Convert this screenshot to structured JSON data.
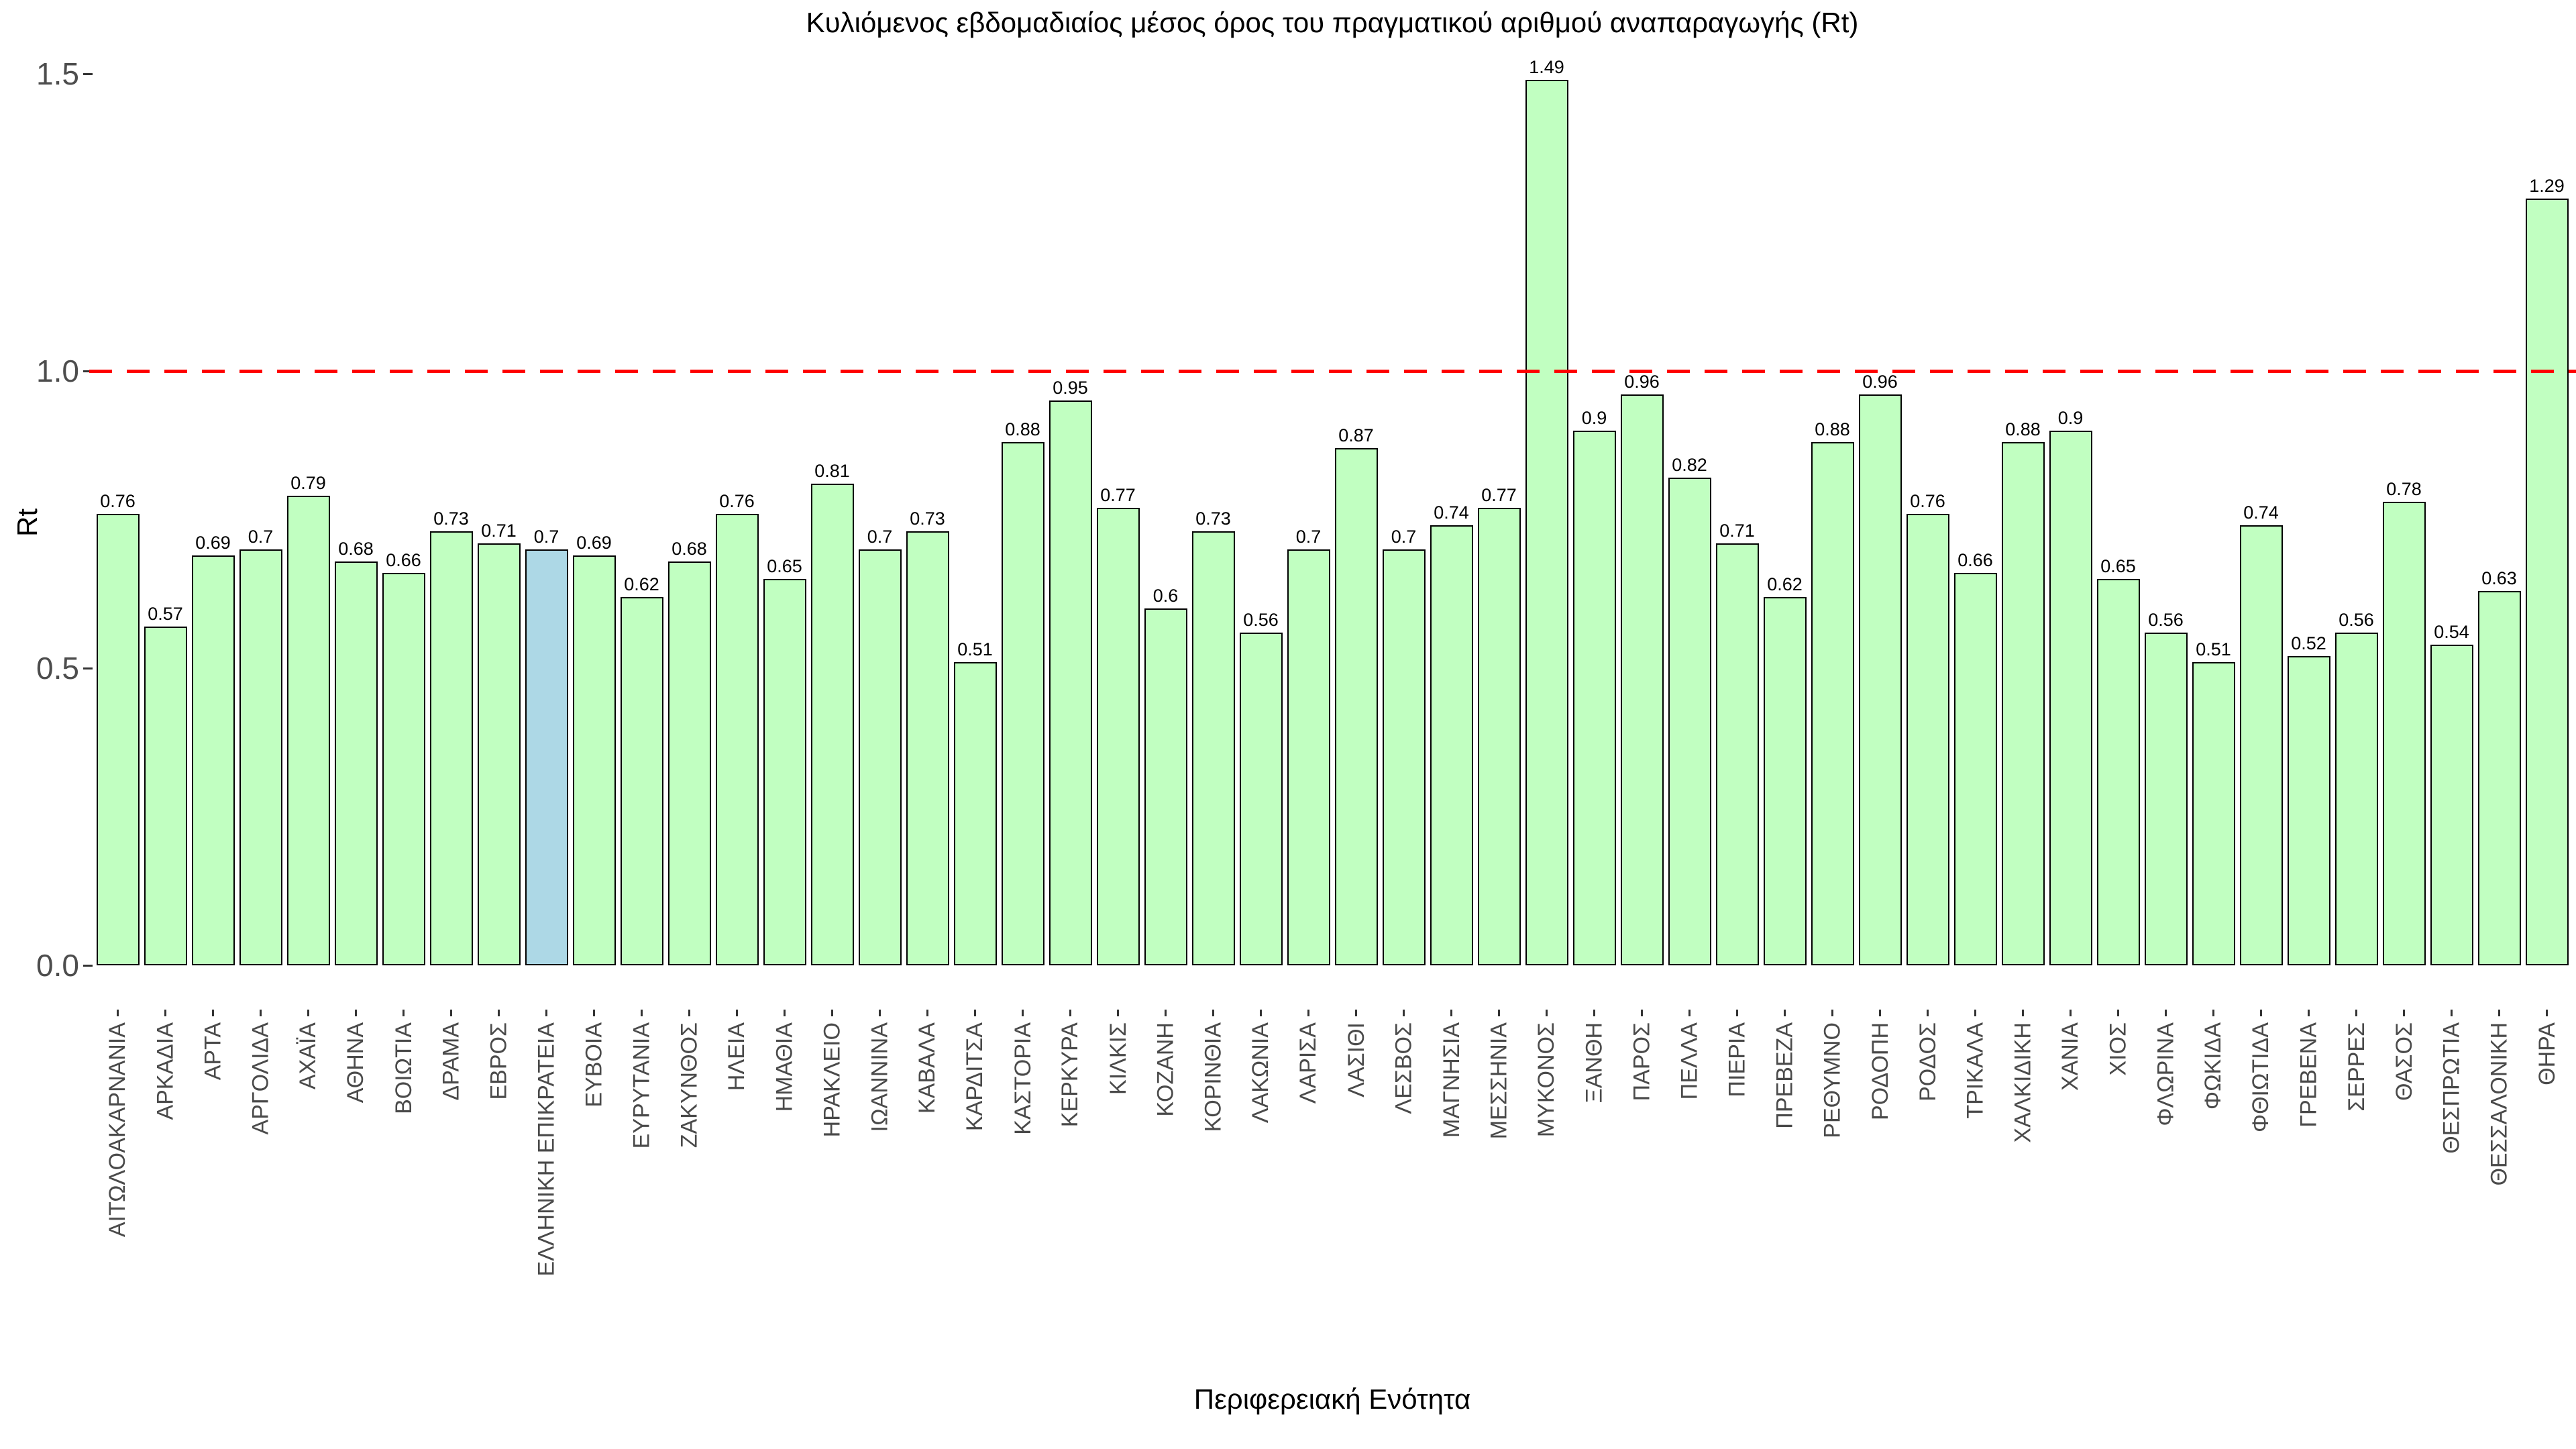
{
  "chart_data": {
    "type": "bar",
    "title": "Κυλιόμενος εβδομαδιαίος μέσος όρος του πραγματικού αριθμού αναπαραγωγής (Rt)",
    "xlabel": "Περιφερειακή Ενότητα",
    "ylabel": "Rt",
    "ylim": [
      0,
      1.5645
    ],
    "grid": false,
    "legend": false,
    "yticks": [
      {
        "value": 0.0,
        "label": "0.0"
      },
      {
        "value": 0.5,
        "label": "0.5"
      },
      {
        "value": 1.0,
        "label": "1.0"
      },
      {
        "value": 1.5,
        "label": "1.5"
      }
    ],
    "reference_line": {
      "value": 1.0,
      "color": "#ff0000",
      "style": "dashed"
    },
    "highlight_category": "ΕΛΛΗΝΙΚΗ ΕΠΙΚΡΑΤΕΙΑ",
    "colors": {
      "bar_fill": "#c1ffc1",
      "highlight_fill": "#add8e6",
      "bar_border": "#000000",
      "axis_text": "#4a4a4a",
      "value_text": "#000000"
    },
    "categories": [
      "ΑΙΤΩΛΟΑΚΑΡΝΑΝΙΑ",
      "ΑΡΚΑΔΙΑ",
      "ΑΡΤΑ",
      "ΑΡΓΟΛΙΔΑ",
      "ΑΧΑΪΑ",
      "ΑΘΗΝΑ",
      "ΒΟΙΩΤΙΑ",
      "ΔΡΑΜΑ",
      "ΕΒΡΟΣ",
      "ΕΛΛΗΝΙΚΗ ΕΠΙΚΡΑΤΕΙΑ",
      "ΕΥΒΟΙΑ",
      "ΕΥΡΥΤΑΝΙΑ",
      "ΖΑΚΥΝΘΟΣ",
      "ΗΛΕΙΑ",
      "ΗΜΑΘΙΑ",
      "ΗΡΑΚΛΕΙΟ",
      "ΙΩΑΝΝΙΝΑ",
      "ΚΑΒΑΛΑ",
      "ΚΑΡΔΙΤΣΑ",
      "ΚΑΣΤΟΡΙΑ",
      "ΚΕΡΚΥΡΑ",
      "ΚΙΛΚΙΣ",
      "ΚΟΖΑΝΗ",
      "ΚΟΡΙΝΘΙΑ",
      "ΛΑΚΩΝΙΑ",
      "ΛΑΡΙΣΑ",
      "ΛΑΣΙΘΙ",
      "ΛΕΣΒΟΣ",
      "ΜΑΓΝΗΣΙΑ",
      "ΜΕΣΣΗΝΙΑ",
      "ΜΥΚΟΝΟΣ",
      "ΞΑΝΘΗ",
      "ΠΑΡΟΣ",
      "ΠΕΛΛΑ",
      "ΠΙΕΡΙΑ",
      "ΠΡΕΒΕΖΑ",
      "ΡΕΘΥΜΝΟ",
      "ΡΟΔΟΠΗ",
      "ΡΟΔΟΣ",
      "ΤΡΙΚΑΛΑ",
      "ΧΑΛΚΙΔΙΚΗ",
      "ΧΑΝΙΑ",
      "ΧΙΟΣ",
      "ΦΛΩΡΙΝΑ",
      "ΦΩΚΙΔΑ",
      "ΦΘΙΩΤΙΔΑ",
      "ΓΡΕΒΕΝΑ",
      "ΣΕΡΡΕΣ",
      "ΘΑΣΟΣ",
      "ΘΕΣΠΡΩΤΙΑ",
      "ΘΕΣΣΑΛΟΝΙΚΗ",
      "ΘΗΡΑ"
    ],
    "values": [
      0.76,
      0.57,
      0.69,
      0.7,
      0.79,
      0.68,
      0.66,
      0.73,
      0.71,
      0.7,
      0.69,
      0.62,
      0.68,
      0.76,
      0.65,
      0.81,
      0.7,
      0.73,
      0.51,
      0.88,
      0.95,
      0.77,
      0.6,
      0.73,
      0.56,
      0.7,
      0.87,
      0.7,
      0.74,
      0.77,
      1.49,
      0.9,
      0.96,
      0.82,
      0.71,
      0.62,
      0.88,
      0.96,
      0.76,
      0.66,
      0.88,
      0.9,
      0.65,
      0.56,
      0.51,
      0.74,
      0.52,
      0.56,
      0.78,
      0.54,
      0.63,
      1.29
    ]
  }
}
